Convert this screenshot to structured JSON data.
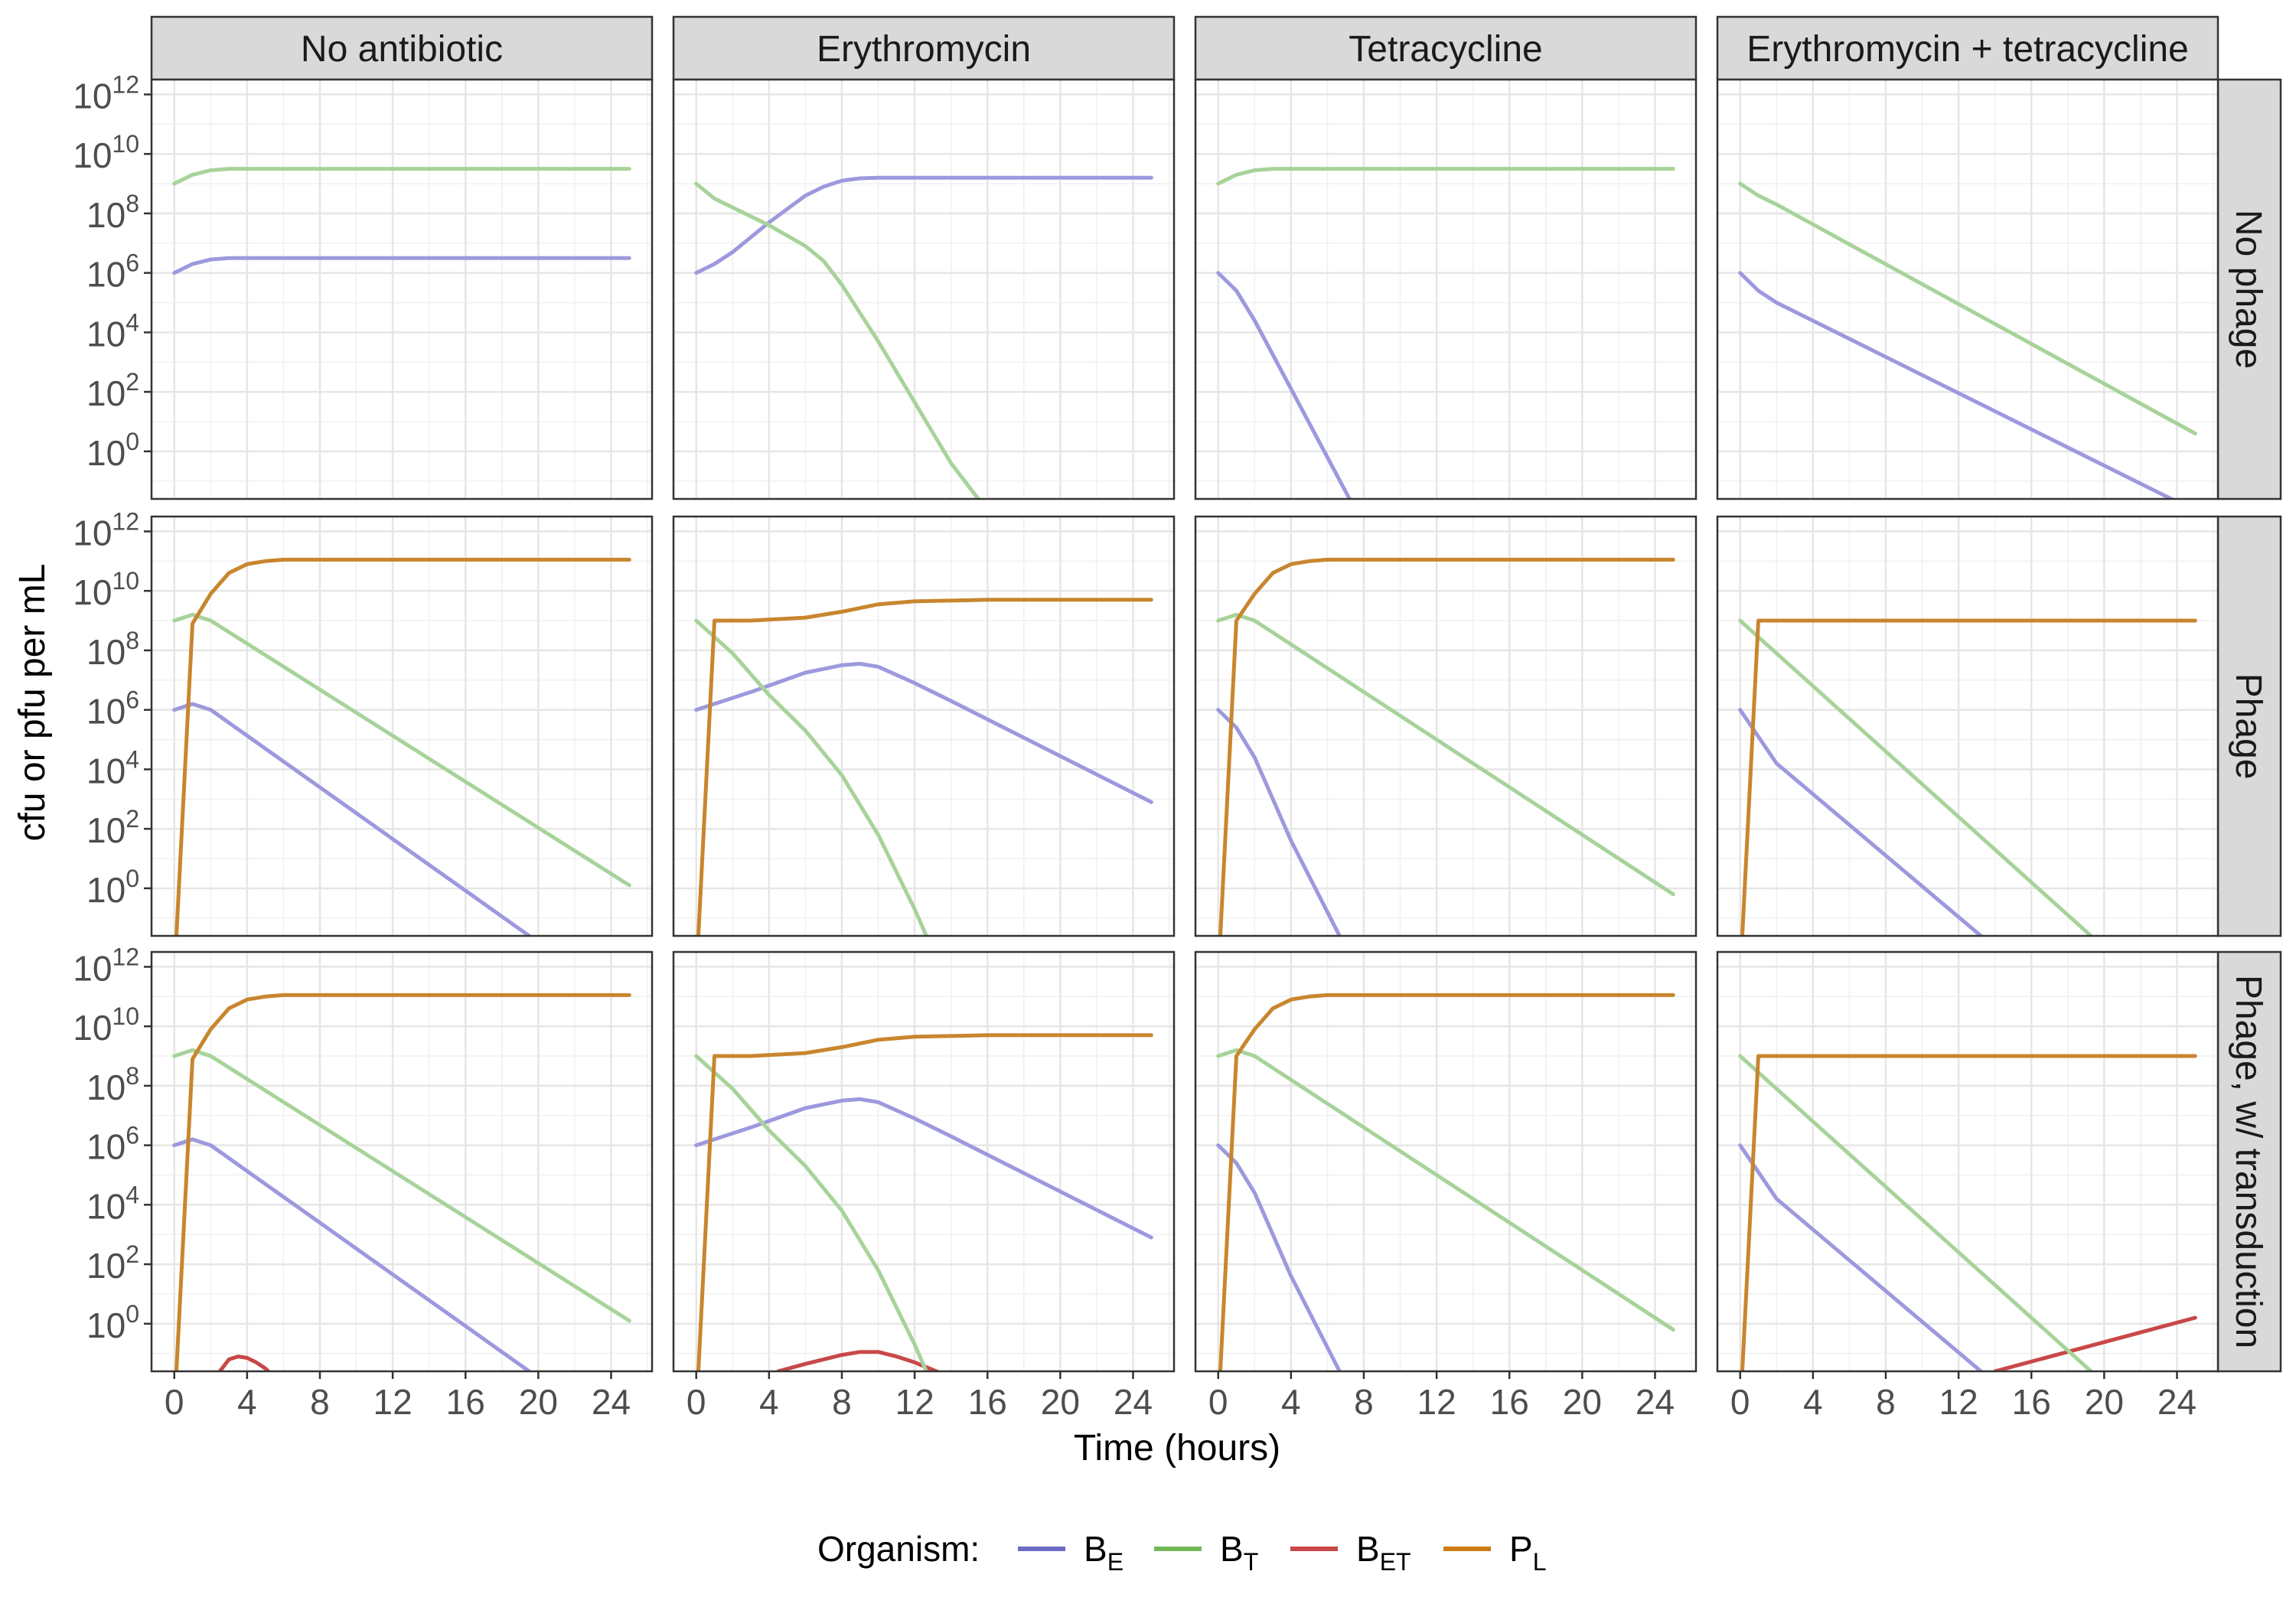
{
  "chart_data": {
    "type": "line",
    "xlabel": "Time (hours)",
    "ylabel": "cfu or pfu per mL",
    "y_scale": "log10",
    "xlim": [
      -1.25,
      26.25
    ],
    "ylim_log10": [
      -1.6,
      12.5
    ],
    "x_ticks": [
      "0",
      "4",
      "8",
      "12",
      "16",
      "20",
      "24"
    ],
    "x_tick_values": [
      0,
      4,
      8,
      12,
      16,
      20,
      24
    ],
    "y_tick_exponents": [
      0,
      2,
      4,
      6,
      8,
      10,
      12
    ],
    "y_tick_base": "10",
    "column_labels": [
      "No antibiotic",
      "Erythromycin",
      "Tetracycline",
      "Erythromycin + tetracycline"
    ],
    "row_labels": [
      "No phage",
      "Phage",
      "Phage, w/ transduction"
    ],
    "grid": true,
    "legend": {
      "title": "Organism:",
      "position": "bottom",
      "items": [
        {
          "key": "BE",
          "base": "B",
          "sub": "E",
          "color": "#6e6bc8"
        },
        {
          "key": "BT",
          "base": "B",
          "sub": "T",
          "color": "#73b95a"
        },
        {
          "key": "BET",
          "base": "B",
          "sub": "ET",
          "color": "#c84848"
        },
        {
          "key": "PL",
          "base": "P",
          "sub": "L",
          "color": "#cd7d14"
        }
      ]
    },
    "series_colors": {
      "BE": "#9d99de",
      "BT": "#a7d39a",
      "BET": "#c84848",
      "PL": "#c8862e"
    },
    "panels": [
      [
        {
          "BE": [
            [
              0,
              6
            ],
            [
              1,
              6.3
            ],
            [
              2,
              6.45
            ],
            [
              3,
              6.5
            ],
            [
              25,
              6.5
            ]
          ],
          "BT": [
            [
              0,
              9
            ],
            [
              1,
              9.3
            ],
            [
              2,
              9.45
            ],
            [
              3,
              9.5
            ],
            [
              25,
              9.5
            ]
          ]
        },
        {
          "BE": [
            [
              0,
              6
            ],
            [
              1,
              6.3
            ],
            [
              2,
              6.7
            ],
            [
              4,
              7.7
            ],
            [
              6,
              8.6
            ],
            [
              7,
              8.9
            ],
            [
              8,
              9.1
            ],
            [
              9,
              9.18
            ],
            [
              10,
              9.2
            ],
            [
              25,
              9.2
            ]
          ],
          "BT": [
            [
              0,
              9
            ],
            [
              1,
              8.5
            ],
            [
              2,
              8.2
            ],
            [
              4,
              7.6
            ],
            [
              6,
              6.9
            ],
            [
              7,
              6.4
            ],
            [
              8,
              5.6
            ],
            [
              10,
              3.7
            ],
            [
              14,
              -0.4
            ],
            [
              18.5,
              -4
            ]
          ]
        },
        {
          "BE": [
            [
              0,
              6
            ],
            [
              1,
              5.4
            ],
            [
              2,
              4.4
            ],
            [
              4,
              2.1
            ],
            [
              6,
              -0.2
            ],
            [
              8,
              -2.5
            ]
          ],
          "BT": [
            [
              0,
              9
            ],
            [
              1,
              9.3
            ],
            [
              2,
              9.45
            ],
            [
              3,
              9.5
            ],
            [
              25,
              9.5
            ]
          ]
        },
        {
          "BE": [
            [
              0,
              6
            ],
            [
              1,
              5.4
            ],
            [
              2,
              5
            ],
            [
              25,
              -2
            ]
          ],
          "BT": [
            [
              0,
              9
            ],
            [
              1,
              8.6
            ],
            [
              2,
              8.3
            ],
            [
              25,
              0.6
            ]
          ]
        }
      ],
      [
        {
          "PL": [
            [
              0,
              -3
            ],
            [
              1,
              8.9
            ],
            [
              2,
              9.9
            ],
            [
              3,
              10.6
            ],
            [
              4,
              10.9
            ],
            [
              5,
              11
            ],
            [
              6,
              11.05
            ],
            [
              25,
              11.05
            ]
          ],
          "BE": [
            [
              0,
              6
            ],
            [
              1,
              6.2
            ],
            [
              2,
              6
            ],
            [
              19.5,
              -1.6
            ]
          ],
          "BT": [
            [
              0,
              9
            ],
            [
              1,
              9.2
            ],
            [
              2,
              9
            ],
            [
              25,
              0.1
            ]
          ]
        },
        {
          "PL": [
            [
              0,
              -3
            ],
            [
              1,
              9
            ],
            [
              3,
              9
            ],
            [
              6,
              9.1
            ],
            [
              8,
              9.3
            ],
            [
              10,
              9.55
            ],
            [
              12,
              9.65
            ],
            [
              16,
              9.7
            ],
            [
              25,
              9.7
            ]
          ],
          "BE": [
            [
              0,
              6
            ],
            [
              3,
              6.6
            ],
            [
              6,
              7.25
            ],
            [
              8,
              7.5
            ],
            [
              9,
              7.55
            ],
            [
              10,
              7.45
            ],
            [
              12,
              6.9
            ],
            [
              14,
              6.3
            ],
            [
              25,
              2.9
            ]
          ],
          "BT": [
            [
              0,
              9
            ],
            [
              2,
              7.9
            ],
            [
              4,
              6.5
            ],
            [
              6,
              5.3
            ],
            [
              8,
              3.8
            ],
            [
              10,
              1.8
            ],
            [
              12,
              -0.7
            ],
            [
              14,
              -3.5
            ]
          ]
        },
        {
          "PL": [
            [
              0,
              -3
            ],
            [
              1,
              9
            ],
            [
              2,
              9.9
            ],
            [
              3,
              10.6
            ],
            [
              4,
              10.9
            ],
            [
              5,
              11
            ],
            [
              6,
              11.05
            ],
            [
              25,
              11.05
            ]
          ],
          "BE": [
            [
              0,
              6
            ],
            [
              1,
              5.4
            ],
            [
              2,
              4.4
            ],
            [
              4,
              1.6
            ],
            [
              7,
              -2
            ]
          ],
          "BT": [
            [
              0,
              9
            ],
            [
              1,
              9.2
            ],
            [
              2,
              9
            ],
            [
              25,
              -0.2
            ]
          ]
        },
        {
          "PL": [
            [
              0,
              -3
            ],
            [
              1,
              9
            ],
            [
              25,
              9
            ]
          ],
          "BE": [
            [
              0,
              6
            ],
            [
              2,
              4.2
            ],
            [
              14,
              -2
            ]
          ],
          "BT": [
            [
              0,
              9
            ],
            [
              20,
              -2
            ]
          ]
        }
      ],
      [
        {
          "PL": [
            [
              0,
              -3
            ],
            [
              1,
              8.9
            ],
            [
              2,
              9.9
            ],
            [
              3,
              10.6
            ],
            [
              4,
              10.9
            ],
            [
              5,
              11
            ],
            [
              6,
              11.05
            ],
            [
              25,
              11.05
            ]
          ],
          "BE": [
            [
              0,
              6
            ],
            [
              1,
              6.2
            ],
            [
              2,
              6
            ],
            [
              19.5,
              -1.6
            ]
          ],
          "BT": [
            [
              0,
              9
            ],
            [
              1,
              9.2
            ],
            [
              2,
              9
            ],
            [
              25,
              0.1
            ]
          ],
          "BET": [
            [
              2.5,
              -1.6
            ],
            [
              3,
              -1.2
            ],
            [
              3.5,
              -1.1
            ],
            [
              4,
              -1.15
            ],
            [
              4.5,
              -1.3
            ],
            [
              5,
              -1.5
            ],
            [
              5.5,
              -1.8
            ]
          ]
        },
        {
          "PL": [
            [
              0,
              -3
            ],
            [
              1,
              9
            ],
            [
              3,
              9
            ],
            [
              6,
              9.1
            ],
            [
              8,
              9.3
            ],
            [
              10,
              9.55
            ],
            [
              12,
              9.65
            ],
            [
              16,
              9.7
            ],
            [
              25,
              9.7
            ]
          ],
          "BE": [
            [
              0,
              6
            ],
            [
              3,
              6.6
            ],
            [
              6,
              7.25
            ],
            [
              8,
              7.5
            ],
            [
              9,
              7.55
            ],
            [
              10,
              7.45
            ],
            [
              12,
              6.9
            ],
            [
              14,
              6.3
            ],
            [
              25,
              2.9
            ]
          ],
          "BT": [
            [
              0,
              9
            ],
            [
              2,
              7.9
            ],
            [
              4,
              6.5
            ],
            [
              6,
              5.3
            ],
            [
              8,
              3.8
            ],
            [
              10,
              1.8
            ],
            [
              12,
              -0.7
            ],
            [
              14,
              -3.5
            ]
          ],
          "BET": [
            [
              4.5,
              -1.6
            ],
            [
              6,
              -1.35
            ],
            [
              8,
              -1.05
            ],
            [
              9,
              -0.95
            ],
            [
              10,
              -0.95
            ],
            [
              11,
              -1.1
            ],
            [
              12,
              -1.3
            ],
            [
              13,
              -1.55
            ],
            [
              14,
              -1.8
            ]
          ]
        },
        {
          "PL": [
            [
              0,
              -3
            ],
            [
              1,
              9
            ],
            [
              2,
              9.9
            ],
            [
              3,
              10.6
            ],
            [
              4,
              10.9
            ],
            [
              5,
              11
            ],
            [
              6,
              11.05
            ],
            [
              25,
              11.05
            ]
          ],
          "BE": [
            [
              0,
              6
            ],
            [
              1,
              5.4
            ],
            [
              2,
              4.4
            ],
            [
              4,
              1.6
            ],
            [
              7,
              -2
            ]
          ],
          "BT": [
            [
              0,
              9
            ],
            [
              1,
              9.2
            ],
            [
              2,
              9
            ],
            [
              25,
              -0.2
            ]
          ]
        },
        {
          "PL": [
            [
              0,
              -3
            ],
            [
              1,
              9
            ],
            [
              25,
              9
            ]
          ],
          "BE": [
            [
              0,
              6
            ],
            [
              2,
              4.2
            ],
            [
              14,
              -2
            ]
          ],
          "BT": [
            [
              0,
              9
            ],
            [
              20,
              -2
            ]
          ],
          "BET": [
            [
              14,
              -1.6
            ],
            [
              25,
              0.2
            ]
          ]
        }
      ]
    ]
  }
}
